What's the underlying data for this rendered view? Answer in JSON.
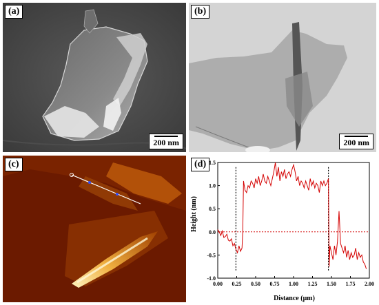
{
  "panels": {
    "a": {
      "label": "(a)",
      "scale": "200 nm"
    },
    "b": {
      "label": "(b)",
      "scale": "200 nm"
    },
    "c": {
      "label": "(c)"
    },
    "d": {
      "label": "(d)"
    }
  },
  "chart_data": {
    "type": "line",
    "xlabel": "Distance (μm)",
    "ylabel": "Height (nm)",
    "xlim": [
      0.0,
      2.0
    ],
    "ylim": [
      -1.0,
      1.5
    ],
    "xticks": [
      "0.00",
      "0.25",
      "0.50",
      "0.75",
      "1.00",
      "1.25",
      "1.50",
      "1.75",
      "2.00"
    ],
    "xtick_values": [
      0,
      0.25,
      0.5,
      0.75,
      1.0,
      1.25,
      1.5,
      1.75,
      2.0
    ],
    "yticks": [
      "-1.0",
      "-0.5",
      "0.0",
      "0.5",
      "1.0",
      "1.5"
    ],
    "ytick_values": [
      -1.0,
      -0.5,
      0.0,
      0.5,
      1.0,
      1.5
    ],
    "color": "#d40000",
    "reference_line_y": 0.0,
    "markers_x": [
      0.24,
      1.46
    ],
    "series": [
      {
        "x": [
          0.0,
          0.02,
          0.04,
          0.06,
          0.08,
          0.1,
          0.12,
          0.14,
          0.16,
          0.18,
          0.2,
          0.22,
          0.24,
          0.26,
          0.28,
          0.3,
          0.32,
          0.33,
          0.34,
          0.36,
          0.38,
          0.4,
          0.42,
          0.44,
          0.46,
          0.48,
          0.5,
          0.52,
          0.54,
          0.56,
          0.58,
          0.6,
          0.62,
          0.64,
          0.66,
          0.68,
          0.7,
          0.72,
          0.74,
          0.76,
          0.78,
          0.8,
          0.82,
          0.84,
          0.86,
          0.88,
          0.9,
          0.92,
          0.94,
          0.96,
          0.98,
          1.0,
          1.02,
          1.04,
          1.06,
          1.08,
          1.1,
          1.12,
          1.14,
          1.16,
          1.18,
          1.2,
          1.22,
          1.24,
          1.26,
          1.28,
          1.3,
          1.32,
          1.34,
          1.36,
          1.38,
          1.4,
          1.42,
          1.44,
          1.46,
          1.47,
          1.48,
          1.5,
          1.52,
          1.54,
          1.56,
          1.58,
          1.6,
          1.62,
          1.64,
          1.66,
          1.68,
          1.7,
          1.72,
          1.74,
          1.76,
          1.78,
          1.8,
          1.82,
          1.84,
          1.86,
          1.88,
          1.9,
          1.92,
          1.94,
          1.96
        ],
        "y": [
          0.05,
          0.0,
          -0.08,
          0.02,
          -0.12,
          -0.1,
          -0.05,
          -0.18,
          -0.2,
          -0.15,
          -0.3,
          -0.25,
          -0.38,
          -0.45,
          -0.3,
          -0.42,
          -0.35,
          0.0,
          1.1,
          0.9,
          0.85,
          1.0,
          0.95,
          1.1,
          1.05,
          0.95,
          1.15,
          1.05,
          1.2,
          1.0,
          1.1,
          1.25,
          1.1,
          1.05,
          1.2,
          1.1,
          1.0,
          1.15,
          1.3,
          1.5,
          1.2,
          1.4,
          1.1,
          1.3,
          1.2,
          1.35,
          1.15,
          1.25,
          1.3,
          1.2,
          1.35,
          1.45,
          1.3,
          1.1,
          1.2,
          1.0,
          1.1,
          1.05,
          0.95,
          1.1,
          1.0,
          0.9,
          1.15,
          1.0,
          1.1,
          0.95,
          1.05,
          1.0,
          0.85,
          1.1,
          1.0,
          1.1,
          1.0,
          1.05,
          1.15,
          -0.75,
          -0.3,
          -0.45,
          -0.6,
          -0.3,
          -0.5,
          -0.2,
          0.45,
          -0.25,
          -0.35,
          -0.45,
          -0.3,
          -0.55,
          -0.4,
          -0.6,
          -0.45,
          -0.55,
          -0.5,
          -0.35,
          -0.6,
          -0.45,
          -0.55,
          -0.5,
          -0.65,
          -0.7,
          -0.8
        ]
      }
    ]
  }
}
